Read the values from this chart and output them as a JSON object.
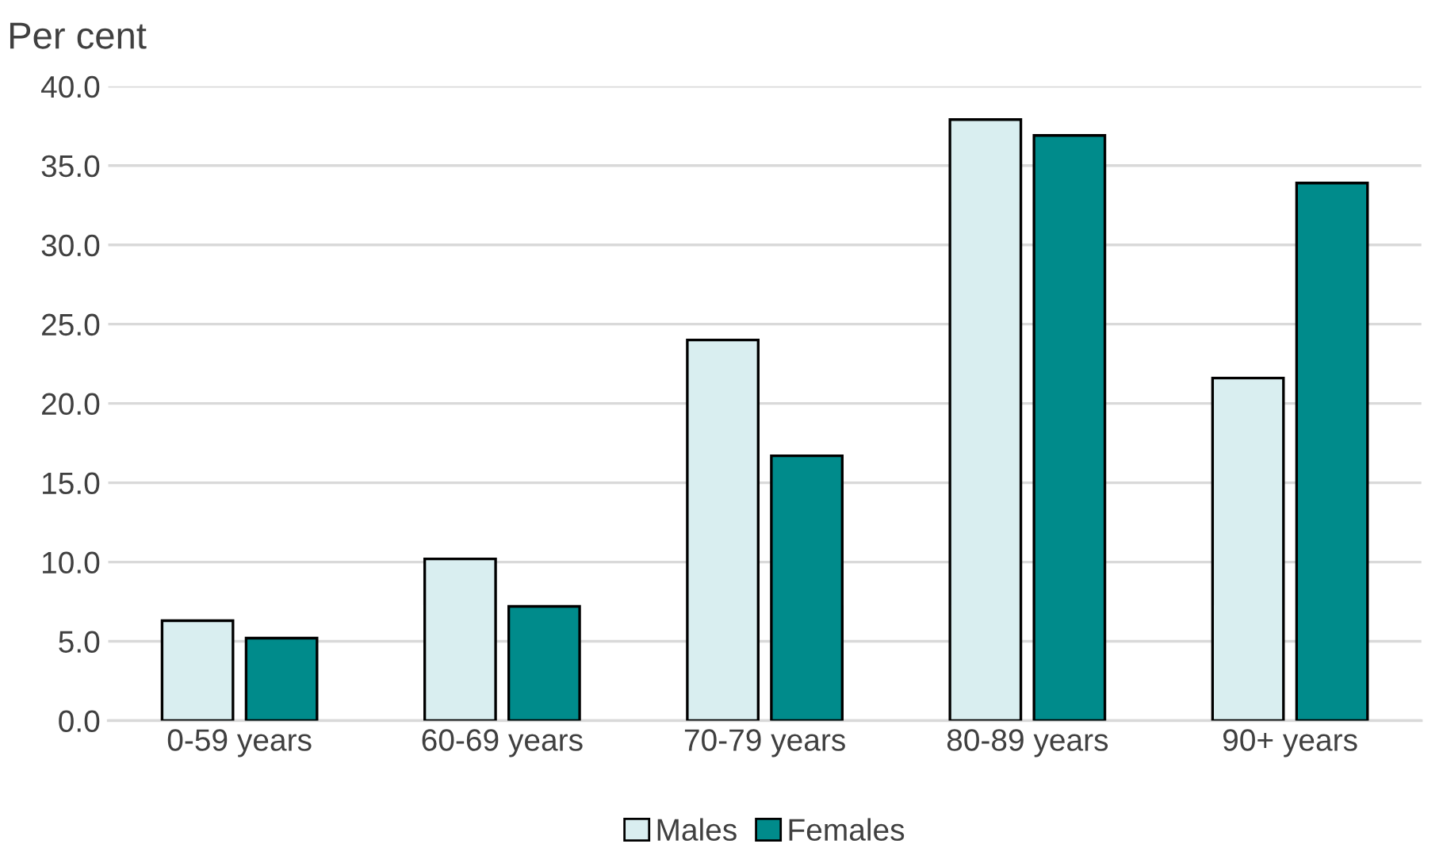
{
  "chart_data": {
    "type": "bar",
    "ylabel": "Per cent",
    "categories": [
      "0-59 years",
      "60-69 years",
      "70-79 years",
      "80-89 years",
      "90+ years"
    ],
    "series": [
      {
        "name": "Males",
        "color": "#d9eef0",
        "values": [
          6.3,
          10.2,
          24.0,
          37.9,
          21.6
        ]
      },
      {
        "name": "Females",
        "color": "#008b8b",
        "values": [
          5.2,
          7.2,
          16.7,
          36.9,
          33.9
        ]
      }
    ],
    "ylim": [
      0,
      40
    ],
    "yticks": [
      {
        "value": 0,
        "label": "0.0"
      },
      {
        "value": 5,
        "label": "5.0"
      },
      {
        "value": 10,
        "label": "10.0"
      },
      {
        "value": 15,
        "label": "15.0"
      },
      {
        "value": 20,
        "label": "20.0"
      },
      {
        "value": 25,
        "label": "25.0"
      },
      {
        "value": 30,
        "label": "30.0"
      },
      {
        "value": 35,
        "label": "35.0"
      },
      {
        "value": 40,
        "label": "40.0"
      }
    ],
    "grid": "y",
    "legend": "bottom"
  }
}
